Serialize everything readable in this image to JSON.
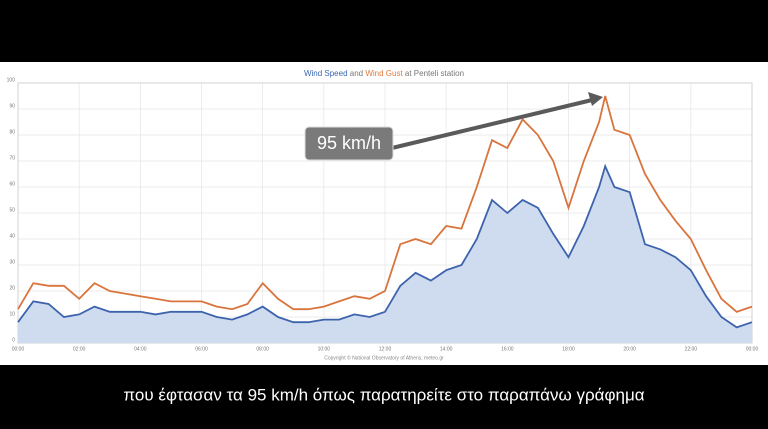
{
  "chart_data": {
    "type": "area-line",
    "title_parts": [
      {
        "text": "Wind Speed",
        "color": "#3a66b0"
      },
      {
        "text": " and ",
        "color": "#777777"
      },
      {
        "text": "Wind Gust",
        "color": "#e07a3c"
      },
      {
        "text": " at Penteli station",
        "color": "#777777"
      }
    ],
    "x": [
      0,
      0.5,
      1,
      1.5,
      2,
      2.5,
      3,
      3.5,
      4,
      4.5,
      5,
      5.5,
      6,
      6.5,
      7,
      7.5,
      8,
      8.5,
      9,
      9.5,
      10,
      10.5,
      11,
      11.5,
      12,
      12.5,
      13,
      13.5,
      14,
      14.5,
      15,
      15.5,
      16,
      16.5,
      17,
      17.5,
      18,
      18.5,
      19,
      19.2,
      19.5,
      20,
      20.5,
      21,
      21.5,
      22,
      22.5,
      23,
      23.5,
      24
    ],
    "series": [
      {
        "name": "Wind Gust",
        "color": "#d9743d",
        "values": [
          13,
          23,
          22,
          22,
          17,
          23,
          20,
          19,
          18,
          17,
          16,
          16,
          16,
          14,
          13,
          15,
          23,
          17,
          13,
          13,
          14,
          16,
          18,
          17,
          20,
          38,
          40,
          38,
          45,
          44,
          60,
          78,
          75,
          86,
          80,
          70,
          52,
          70,
          85,
          95,
          82,
          80,
          65,
          55,
          47,
          40,
          28,
          17,
          12,
          14
        ]
      },
      {
        "name": "Wind Speed",
        "color": "#3d63ad",
        "fill": "#cfdcf0",
        "values": [
          8,
          16,
          15,
          10,
          11,
          14,
          12,
          12,
          12,
          11,
          12,
          12,
          12,
          10,
          9,
          11,
          14,
          10,
          8,
          8,
          9,
          9,
          11,
          10,
          12,
          22,
          27,
          24,
          28,
          30,
          40,
          55,
          50,
          55,
          52,
          42,
          33,
          45,
          60,
          68,
          60,
          58,
          38,
          36,
          33,
          28,
          18,
          10,
          6,
          8
        ]
      }
    ],
    "xlim": [
      0,
      24
    ],
    "xticks": [
      {
        "value": 0,
        "label": "00:00"
      },
      {
        "value": 2,
        "label": "02:00"
      },
      {
        "value": 4,
        "label": "04:00"
      },
      {
        "value": 6,
        "label": "06:00"
      },
      {
        "value": 8,
        "label": "08:00"
      },
      {
        "value": 10,
        "label": "10:00"
      },
      {
        "value": 12,
        "label": "12:00"
      },
      {
        "value": 14,
        "label": "14:00"
      },
      {
        "value": 16,
        "label": "16:00"
      },
      {
        "value": 18,
        "label": "18:00"
      },
      {
        "value": 20,
        "label": "20:00"
      },
      {
        "value": 22,
        "label": "22:00"
      },
      {
        "value": 24,
        "label": "00:00"
      }
    ],
    "ylim": [
      0,
      100
    ],
    "yticks": [
      0,
      10,
      20,
      30,
      40,
      50,
      60,
      70,
      80,
      90,
      100
    ],
    "grid": true,
    "annotation": "95 km/h",
    "credit": "Copyright © National Observatory of Athens, meteo.gr"
  },
  "subtitle": "που έφτασαν τα 95 km/h όπως παρατηρείτε στο παραπάνω γράφημα"
}
